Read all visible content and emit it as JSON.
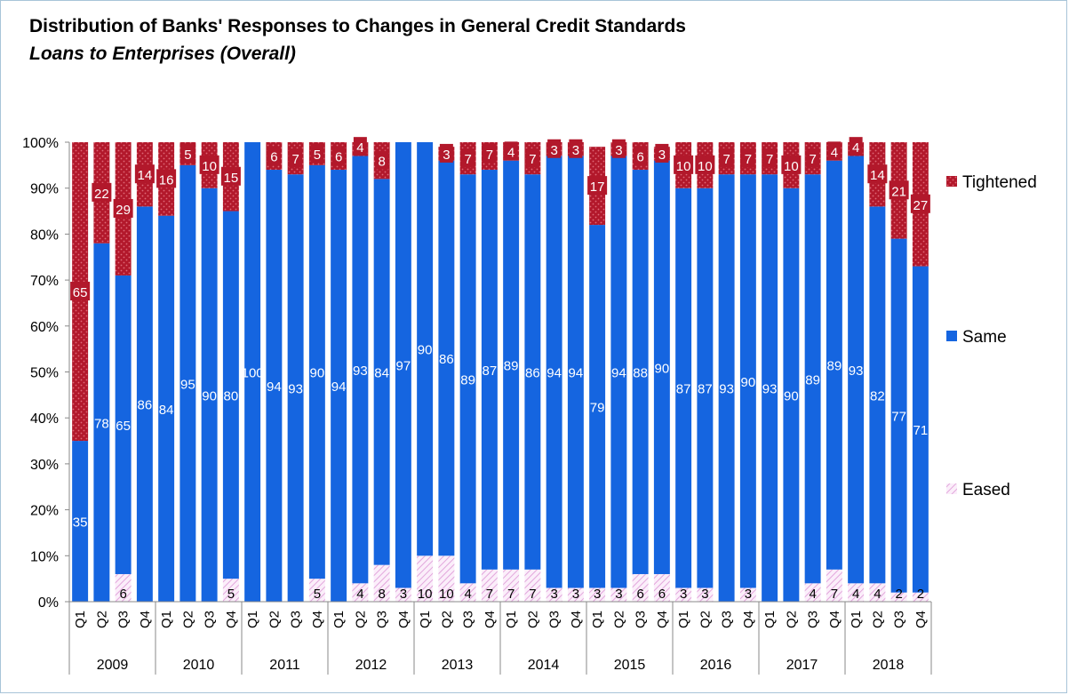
{
  "chart_data": {
    "type": "bar",
    "stacked": true,
    "title": "Distribution of Banks' Responses to Changes in General Credit Standards",
    "subtitle": "Loans to Enterprises (Overall)",
    "ylim": [
      0,
      100
    ],
    "yticks": [
      "0%",
      "10%",
      "20%",
      "30%",
      "40%",
      "50%",
      "60%",
      "70%",
      "80%",
      "90%",
      "100%"
    ],
    "years": [
      "2009",
      "2010",
      "2011",
      "2012",
      "2013",
      "2014",
      "2015",
      "2016",
      "2017",
      "2018"
    ],
    "quarters": [
      "Q1",
      "Q2",
      "Q3",
      "Q4"
    ],
    "colors": {
      "tightened": "#b2182b",
      "same": "#1565e0",
      "eased": "#f2c8ee"
    },
    "legend_position": "right",
    "series": [
      {
        "name": "Eased",
        "values": [
          0,
          0,
          6,
          0,
          0,
          0,
          0,
          5,
          0,
          0,
          0,
          5,
          0,
          4,
          8,
          3,
          10,
          10,
          4,
          7,
          7,
          7,
          3,
          3,
          3,
          3,
          6,
          6,
          3,
          3,
          0,
          3,
          0,
          0,
          4,
          7,
          4,
          4,
          2,
          2
        ],
        "labels": [
          "",
          "",
          "6",
          "",
          "",
          "",
          "",
          "5",
          "",
          "",
          "",
          "5",
          "",
          "4",
          "8",
          "3",
          "10",
          "10",
          "4",
          "7",
          "7",
          "7",
          "3",
          "3",
          "3",
          "3",
          "6",
          "6",
          "3",
          "3",
          "",
          "3",
          "",
          "",
          "4",
          "7",
          "4",
          "4",
          "2",
          "2"
        ]
      },
      {
        "name": "Same",
        "values": [
          35,
          78,
          65,
          86,
          84,
          95,
          90,
          80,
          100,
          94,
          93,
          90,
          94,
          93,
          84,
          97,
          90,
          86,
          89,
          87,
          89,
          86,
          94,
          94,
          79,
          94,
          88,
          90,
          87,
          87,
          93,
          90,
          93,
          90,
          89,
          89,
          93,
          82,
          77,
          71
        ],
        "labels": [
          "35",
          "78",
          "65",
          "86",
          "84",
          "95",
          "90",
          "80",
          "100",
          "94",
          "93",
          "90",
          "94",
          "93",
          "84",
          "97",
          "90",
          "86",
          "89",
          "87",
          "89",
          "86",
          "94",
          "94",
          "79",
          "94",
          "88",
          "90",
          "87",
          "87",
          "93",
          "90",
          "93",
          "90",
          "89",
          "89",
          "93",
          "82",
          "77",
          "71"
        ]
      },
      {
        "name": "Tightened",
        "values": [
          65,
          22,
          29,
          14,
          16,
          5,
          10,
          15,
          0,
          6,
          7,
          5,
          6,
          4,
          8,
          0,
          0,
          3,
          7,
          7,
          4,
          7,
          3,
          3,
          17,
          3,
          6,
          3,
          10,
          10,
          7,
          7,
          7,
          10,
          7,
          4,
          4,
          14,
          21,
          27
        ],
        "labels": [
          "65",
          "22",
          "29",
          "14",
          "16",
          "5",
          "10",
          "15",
          "",
          "6",
          "7",
          "5",
          "6",
          "4",
          "8",
          "",
          "",
          "3",
          "7",
          "7",
          "4",
          "7",
          "3",
          "3",
          "17",
          "3",
          "6",
          "3",
          "10",
          "10",
          "7",
          "7",
          "7",
          "10",
          "7",
          "4",
          "4",
          "14",
          "21",
          "27"
        ]
      }
    ]
  }
}
